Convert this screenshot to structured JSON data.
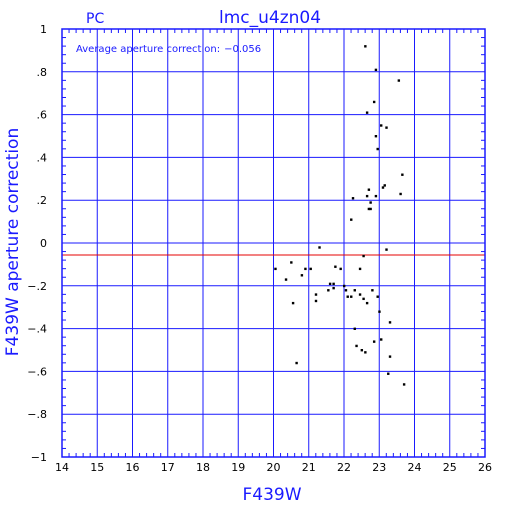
{
  "header": {
    "instrument": "PC",
    "title": "lmc_u4zn04"
  },
  "annotation": {
    "label": "Average aperture correction:",
    "value": "−0.056"
  },
  "colors": {
    "frame": "#1a1aff",
    "reference_line": "#e60000",
    "points": "#000000",
    "ticks": "#000000"
  },
  "chart_data": {
    "type": "scatter",
    "title": "lmc_u4zn04",
    "xlabel": "F439W",
    "ylabel": "F439W aperture correction",
    "xlim": [
      14,
      26
    ],
    "ylim": [
      -1,
      1
    ],
    "grid": true,
    "x_ticks": [
      14,
      15,
      16,
      17,
      18,
      19,
      20,
      21,
      22,
      23,
      24,
      25,
      26
    ],
    "y_ticks": [
      -1,
      -0.8,
      -0.6,
      -0.4,
      -0.2,
      0,
      0.2,
      0.4,
      0.6,
      0.8,
      1
    ],
    "reference_line": {
      "y": -0.056
    },
    "points": [
      [
        20.05,
        -0.12
      ],
      [
        20.35,
        -0.17
      ],
      [
        20.5,
        -0.09
      ],
      [
        20.55,
        -0.28
      ],
      [
        20.65,
        -0.56
      ],
      [
        20.8,
        -0.15
      ],
      [
        20.9,
        -0.12
      ],
      [
        21.05,
        -0.12
      ],
      [
        21.2,
        -0.24
      ],
      [
        21.2,
        -0.27
      ],
      [
        21.3,
        -0.02
      ],
      [
        21.55,
        -0.22
      ],
      [
        21.6,
        -0.19
      ],
      [
        21.7,
        -0.21
      ],
      [
        21.7,
        -0.19
      ],
      [
        21.75,
        -0.11
      ],
      [
        21.9,
        -0.12
      ],
      [
        22.0,
        -0.2
      ],
      [
        22.05,
        -0.22
      ],
      [
        22.1,
        -0.25
      ],
      [
        22.2,
        -0.25
      ],
      [
        22.2,
        0.11
      ],
      [
        22.25,
        0.21
      ],
      [
        22.3,
        -0.4
      ],
      [
        22.3,
        -0.22
      ],
      [
        22.35,
        -0.48
      ],
      [
        22.45,
        -0.12
      ],
      [
        22.45,
        -0.24
      ],
      [
        22.5,
        -0.5
      ],
      [
        22.55,
        -0.06
      ],
      [
        22.55,
        -0.26
      ],
      [
        22.6,
        -0.51
      ],
      [
        22.6,
        0.92
      ],
      [
        22.65,
        0.22
      ],
      [
        22.65,
        0.61
      ],
      [
        22.65,
        -0.28
      ],
      [
        22.7,
        0.16
      ],
      [
        22.7,
        0.25
      ],
      [
        22.75,
        0.16
      ],
      [
        22.75,
        0.19
      ],
      [
        22.8,
        -0.22
      ],
      [
        22.85,
        0.66
      ],
      [
        22.85,
        -0.46
      ],
      [
        22.9,
        0.81
      ],
      [
        22.9,
        0.5
      ],
      [
        22.9,
        0.22
      ],
      [
        22.95,
        0.44
      ],
      [
        22.95,
        -0.25
      ],
      [
        23.0,
        -0.32
      ],
      [
        23.05,
        0.55
      ],
      [
        23.05,
        -0.45
      ],
      [
        23.1,
        0.26
      ],
      [
        23.15,
        0.27
      ],
      [
        23.2,
        0.54
      ],
      [
        23.2,
        -0.03
      ],
      [
        23.25,
        -0.61
      ],
      [
        23.3,
        -0.53
      ],
      [
        23.3,
        -0.37
      ],
      [
        23.55,
        0.76
      ],
      [
        23.6,
        0.23
      ],
      [
        23.65,
        0.32
      ],
      [
        23.7,
        -0.66
      ]
    ]
  }
}
